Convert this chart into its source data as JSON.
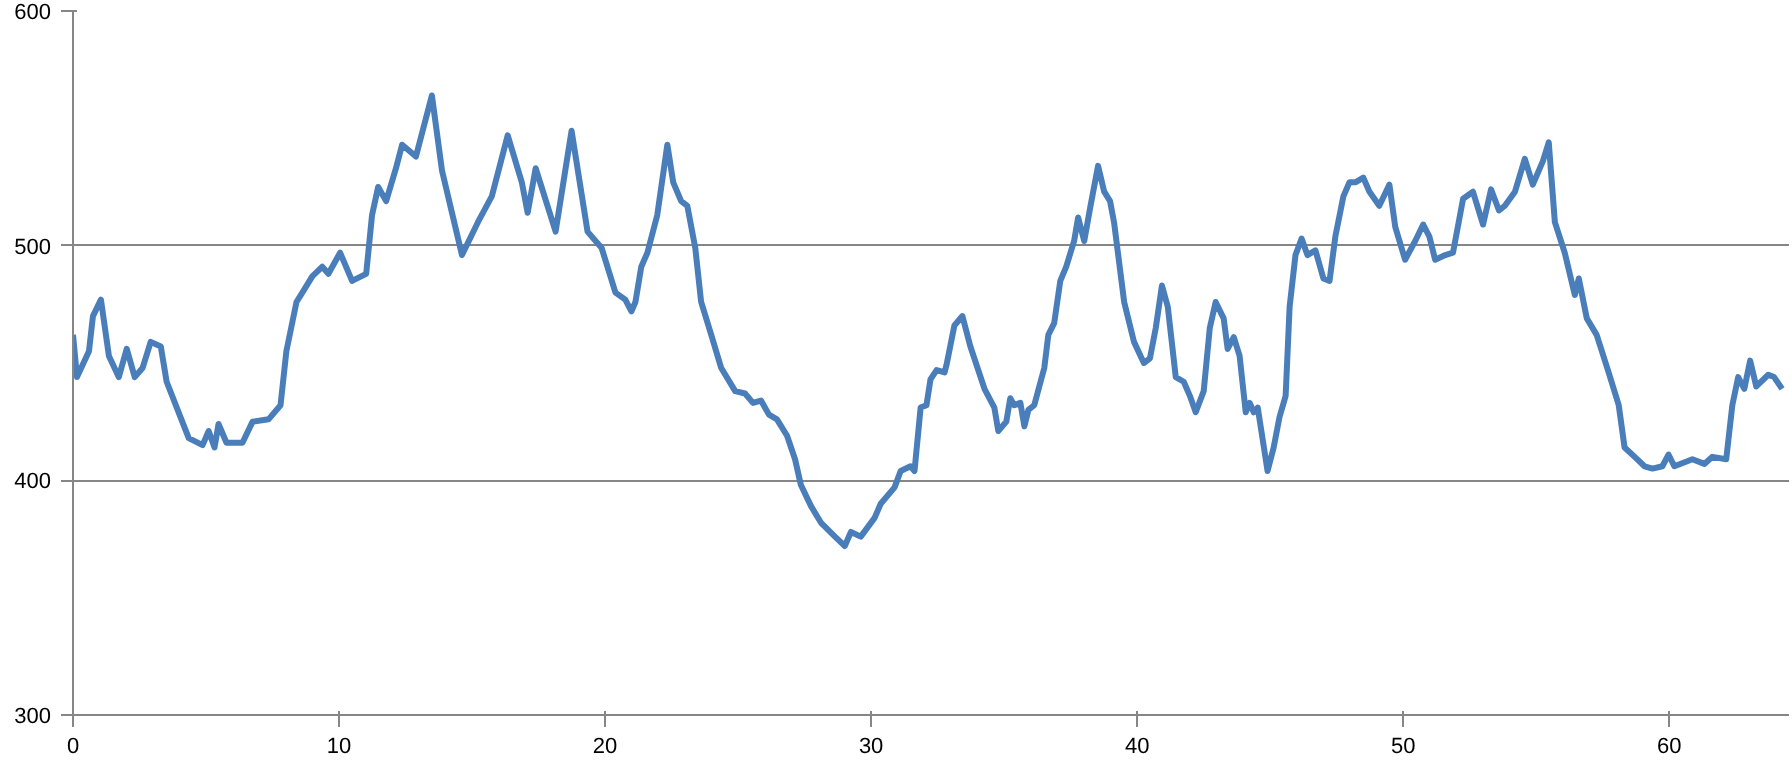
{
  "chart_data": {
    "type": "line",
    "xlim": [
      0,
      64.5
    ],
    "ylim": [
      300,
      600
    ],
    "xticks": [
      0,
      10,
      20,
      30,
      40,
      50,
      60
    ],
    "yticks": [
      300,
      400,
      500,
      600
    ],
    "grid": "y",
    "marker": "none",
    "line_style": "solid",
    "series": [
      {
        "color": "#4a7ebb",
        "x": [
          0,
          0.15,
          0.6,
          0.75,
          1.05,
          1.35,
          1.72,
          2.02,
          2.32,
          2.62,
          2.92,
          3.3,
          3.52,
          3.97,
          4.35,
          4.87,
          5.1,
          5.32,
          5.47,
          5.77,
          6.37,
          6.75,
          7.35,
          7.8,
          8.02,
          8.4,
          8.62,
          9.0,
          9.37,
          9.6,
          10.04,
          10.49,
          11.02,
          11.24,
          11.47,
          11.77,
          12.14,
          12.37,
          12.89,
          13.49,
          13.87,
          14.62,
          15.22,
          15.74,
          16.34,
          16.87,
          17.09,
          17.39,
          18.14,
          18.74,
          19.34,
          19.87,
          20.39,
          20.76,
          20.99,
          21.14,
          21.36,
          21.59,
          21.96,
          22.34,
          22.56,
          22.86,
          23.09,
          23.39,
          23.61,
          23.99,
          24.36,
          24.89,
          25.26,
          25.56,
          25.86,
          26.16,
          26.46,
          26.84,
          27.14,
          27.36,
          27.74,
          28.11,
          28.64,
          29.01,
          29.24,
          29.61,
          30.13,
          30.36,
          30.88,
          31.11,
          31.48,
          31.63,
          31.86,
          32.08,
          32.23,
          32.46,
          32.76,
          32.83,
          33.13,
          33.43,
          33.73,
          34.26,
          34.63,
          34.78,
          35.08,
          35.23,
          35.38,
          35.61,
          35.76,
          35.91,
          36.13,
          36.51,
          36.66,
          36.88,
          37.11,
          37.33,
          37.63,
          37.78,
          38.01,
          38.23,
          38.53,
          38.76,
          38.98,
          39.13,
          39.51,
          39.88,
          40.25,
          40.48,
          40.7,
          40.93,
          41.15,
          41.45,
          41.75,
          41.98,
          42.2,
          42.5,
          42.73,
          42.95,
          43.25,
          43.4,
          43.63,
          43.85,
          44.08,
          44.23,
          44.38,
          44.53,
          44.75,
          44.9,
          45.13,
          45.35,
          45.58,
          45.73,
          45.95,
          46.18,
          46.4,
          46.7,
          47.0,
          47.23,
          47.45,
          47.75,
          47.98,
          48.2,
          48.5,
          48.73,
          49.1,
          49.48,
          49.7,
          50.07,
          50.45,
          50.75,
          50.98,
          51.2,
          51.58,
          51.87,
          52.25,
          52.62,
          53.0,
          53.3,
          53.6,
          53.82,
          54.2,
          54.57,
          54.87,
          55.25,
          55.47,
          55.7,
          56.07,
          56.45,
          56.6,
          56.9,
          57.27,
          57.72,
          58.1,
          58.32,
          58.7,
          59.07,
          59.37,
          59.74,
          59.97,
          60.19,
          60.87,
          61.32,
          61.62,
          62.14,
          62.37,
          62.59,
          62.82,
          63.04,
          63.27,
          63.72,
          63.94,
          64.24
        ],
        "values": [
          462,
          444,
          455,
          470,
          477,
          453,
          444,
          456,
          444,
          448,
          459,
          457,
          442,
          429,
          418,
          415,
          421,
          414,
          424,
          416,
          416,
          425,
          426,
          432,
          455,
          476,
          480,
          487,
          491,
          488,
          497,
          485,
          488,
          513,
          525,
          519,
          533,
          543,
          538,
          564,
          532,
          496,
          510,
          521,
          547,
          527,
          514,
          533,
          506,
          549,
          506,
          499,
          480,
          477,
          472,
          476,
          491,
          497,
          513,
          543,
          527,
          519,
          517,
          499,
          476,
          462,
          448,
          438,
          437,
          433,
          434,
          428,
          426,
          419,
          409,
          398,
          389,
          382,
          376,
          372,
          378,
          376,
          384,
          390,
          397,
          404,
          406,
          404,
          431,
          432,
          443,
          447,
          446,
          449,
          466,
          470,
          457,
          439,
          431,
          421,
          425,
          435,
          432,
          433,
          423,
          430,
          432,
          448,
          462,
          467,
          485,
          491,
          502,
          512,
          502,
          516,
          534,
          523,
          519,
          510,
          476,
          459,
          450,
          452,
          465,
          483,
          474,
          444,
          442,
          436,
          429,
          438,
          465,
          476,
          469,
          456,
          461,
          453,
          429,
          433,
          429,
          431,
          415,
          404,
          414,
          427,
          436,
          474,
          496,
          503,
          496,
          498,
          486,
          485,
          504,
          521,
          527,
          527,
          529,
          523,
          517,
          526,
          508,
          494,
          502,
          509,
          504,
          494,
          496,
          497,
          520,
          523,
          509,
          524,
          515,
          517,
          523,
          537,
          526,
          536,
          544,
          510,
          497,
          479,
          486,
          469,
          462,
          446,
          432,
          414,
          410,
          406,
          405,
          406,
          411,
          406,
          409,
          407,
          410,
          409,
          432,
          444,
          439,
          451,
          440,
          445,
          444,
          439
        ]
      }
    ]
  }
}
